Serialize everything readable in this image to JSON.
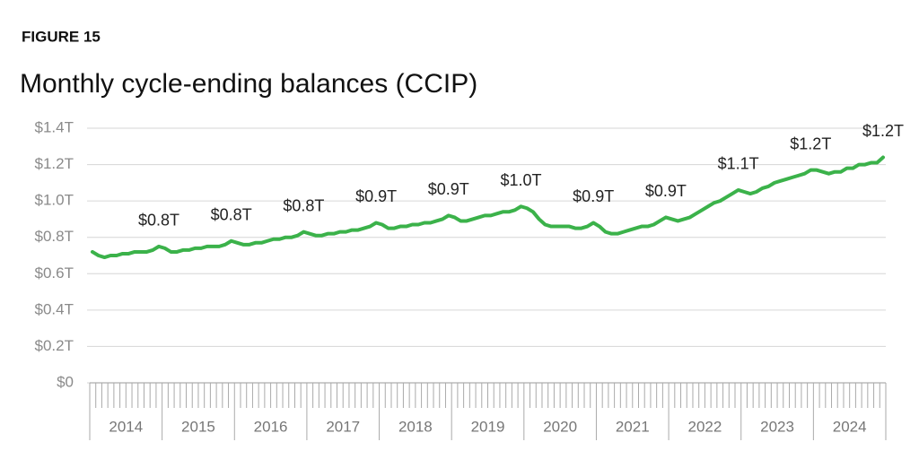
{
  "chart_data": {
    "type": "line",
    "subtitle": "FIGURE 15",
    "title": "Monthly cycle-ending balances (CCIP)",
    "categories": [
      "2014",
      "2015",
      "2016",
      "2017",
      "2018",
      "2019",
      "2020",
      "2021",
      "2022",
      "2023",
      "2024"
    ],
    "series": [
      {
        "name": "Balances",
        "color": "#3bb24a",
        "values": [
          [
            0.72,
            0.7,
            0.69,
            0.7,
            0.7,
            0.71,
            0.71,
            0.72,
            0.72,
            0.72,
            0.73,
            0.75
          ],
          [
            0.74,
            0.72,
            0.72,
            0.73,
            0.73,
            0.74,
            0.74,
            0.75,
            0.75,
            0.75,
            0.76,
            0.78
          ],
          [
            0.77,
            0.76,
            0.76,
            0.77,
            0.77,
            0.78,
            0.79,
            0.79,
            0.8,
            0.8,
            0.81,
            0.83
          ],
          [
            0.82,
            0.81,
            0.81,
            0.82,
            0.82,
            0.83,
            0.83,
            0.84,
            0.84,
            0.85,
            0.86,
            0.88
          ],
          [
            0.87,
            0.85,
            0.85,
            0.86,
            0.86,
            0.87,
            0.87,
            0.88,
            0.88,
            0.89,
            0.9,
            0.92
          ],
          [
            0.91,
            0.89,
            0.89,
            0.9,
            0.91,
            0.92,
            0.92,
            0.93,
            0.94,
            0.94,
            0.95,
            0.97
          ],
          [
            0.96,
            0.94,
            0.9,
            0.87,
            0.86,
            0.86,
            0.86,
            0.86,
            0.85,
            0.85,
            0.86,
            0.88
          ],
          [
            0.86,
            0.83,
            0.82,
            0.82,
            0.83,
            0.84,
            0.85,
            0.86,
            0.86,
            0.87,
            0.89,
            0.91
          ],
          [
            0.9,
            0.89,
            0.9,
            0.91,
            0.93,
            0.95,
            0.97,
            0.99,
            1.0,
            1.02,
            1.04,
            1.06
          ],
          [
            1.05,
            1.04,
            1.05,
            1.07,
            1.08,
            1.1,
            1.11,
            1.12,
            1.13,
            1.14,
            1.15,
            1.17
          ],
          [
            1.17,
            1.16,
            1.15,
            1.16,
            1.16,
            1.18,
            1.18,
            1.2,
            1.2,
            1.21,
            1.21,
            1.24
          ]
        ],
        "value_labels": [
          [
            null,
            null,
            null,
            null,
            null,
            null,
            null,
            null,
            null,
            null,
            null,
            "$0.8T"
          ],
          [
            null,
            null,
            null,
            null,
            null,
            null,
            null,
            null,
            null,
            null,
            null,
            "$0.8T"
          ],
          [
            null,
            null,
            null,
            null,
            null,
            null,
            null,
            null,
            null,
            null,
            null,
            "$0.8T"
          ],
          [
            null,
            null,
            null,
            null,
            null,
            null,
            null,
            null,
            null,
            null,
            null,
            "$0.9T"
          ],
          [
            null,
            null,
            null,
            null,
            null,
            null,
            null,
            null,
            null,
            null,
            null,
            "$0.9T"
          ],
          [
            null,
            null,
            null,
            null,
            null,
            null,
            null,
            null,
            null,
            null,
            null,
            "$1.0T"
          ],
          [
            null,
            null,
            null,
            null,
            null,
            null,
            null,
            null,
            null,
            null,
            null,
            "$0.9T"
          ],
          [
            null,
            null,
            null,
            null,
            null,
            null,
            null,
            null,
            null,
            null,
            null,
            "$0.9T"
          ],
          [
            null,
            null,
            null,
            null,
            null,
            null,
            null,
            null,
            null,
            null,
            null,
            "$1.1T"
          ],
          [
            null,
            null,
            null,
            null,
            null,
            null,
            null,
            null,
            null,
            null,
            null,
            "$1.2T"
          ],
          [
            null,
            null,
            null,
            null,
            null,
            null,
            null,
            null,
            null,
            null,
            null,
            "$1.2T"
          ]
        ]
      }
    ],
    "ylim": [
      0,
      1.4
    ],
    "yticks": [
      {
        "value": 0,
        "label": "$0"
      },
      {
        "value": 0.2,
        "label": "$0.2T"
      },
      {
        "value": 0.4,
        "label": "$0.4T"
      },
      {
        "value": 0.6,
        "label": "$0.6T"
      },
      {
        "value": 0.8,
        "label": "$0.8T"
      },
      {
        "value": 1.0,
        "label": "$1.0T"
      },
      {
        "value": 1.2,
        "label": "$1.2T"
      },
      {
        "value": 1.4,
        "label": "$1.4T"
      }
    ],
    "grid": true
  }
}
